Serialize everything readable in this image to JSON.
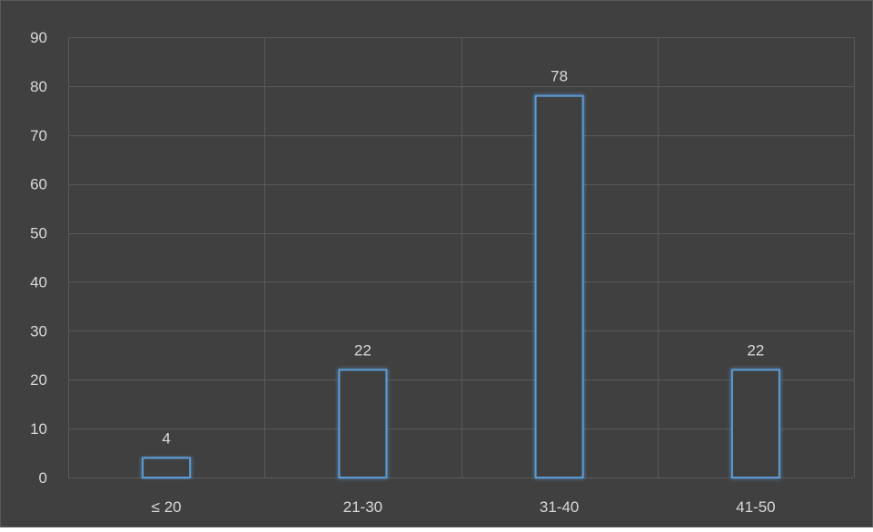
{
  "chart_data": {
    "type": "bar",
    "title": "",
    "xlabel": "",
    "ylabel": "",
    "categories": [
      "≤ 20",
      "21-30",
      "31-40",
      "41-50"
    ],
    "values": [
      4,
      22,
      78,
      22
    ],
    "data_labels": [
      "4",
      "22",
      "78",
      "22"
    ],
    "ylim": [
      0,
      90
    ],
    "yticks": [
      0,
      10,
      20,
      30,
      40,
      50,
      60,
      70,
      80,
      90
    ],
    "ytick_labels": [
      "0",
      "10",
      "20",
      "30",
      "40",
      "50",
      "60",
      "70",
      "80",
      "90"
    ],
    "grid": true,
    "legend": "none"
  },
  "colors": {
    "background": "#404040",
    "plot_border": "#5a5a5a",
    "gridline": "#595959",
    "bar_outline": "#5b9bd5",
    "bar_fill": "#404040",
    "text": "#d9d9d9"
  }
}
